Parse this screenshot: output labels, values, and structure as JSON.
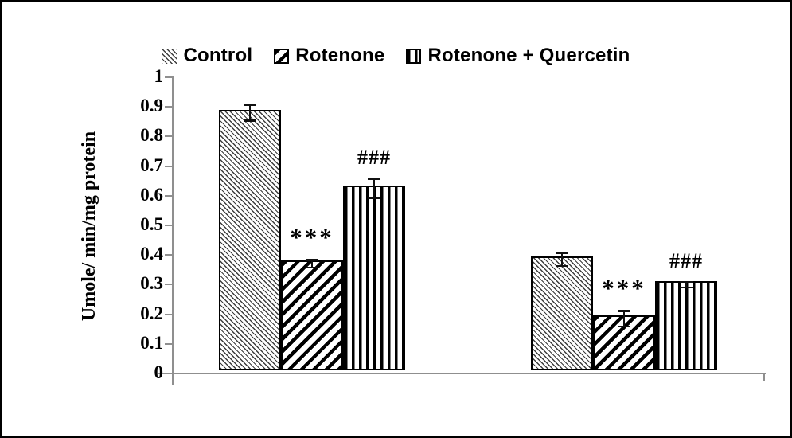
{
  "figure": {
    "background": "#ffffff",
    "frame_border_color": "#000000",
    "axis_color": "#8f8f8f",
    "bar_border_color": "#000000",
    "hatch_fine_color": "#3d3d3d"
  },
  "chart_data": {
    "type": "bar",
    "title": "",
    "xlabel": "",
    "ylabel": "Umole/ min/mg protein",
    "ylim": [
      0,
      1
    ],
    "yticks": [
      0,
      0.1,
      0.2,
      0.3,
      0.4,
      0.5,
      0.6,
      0.7,
      0.8,
      0.9,
      1
    ],
    "ytick_labels": [
      "0",
      "0.1",
      "0.2",
      "0.3",
      "0.4",
      "0.5",
      "0.6",
      "0.7",
      "0.8",
      "0.9",
      "1"
    ],
    "grid": false,
    "legend_position": "top",
    "legend": [
      {
        "label": "Control",
        "pattern": "fine-diagonal-down-hatch",
        "bordered_swatch": false
      },
      {
        "label": "Rotenone",
        "pattern": "wide-diagonal-up-hatch",
        "bordered_swatch": true
      },
      {
        "label": "Rotenone + Quercetin",
        "pattern": "vertical-stripe-hatch",
        "bordered_swatch": true
      }
    ],
    "series_order": [
      "Control",
      "Rotenone",
      "Rotenone + Quercetin"
    ],
    "groups": [
      {
        "bars": [
          {
            "series": "Control",
            "value": 0.88,
            "error": 0.03,
            "annotation": ""
          },
          {
            "series": "Rotenone",
            "value": 0.37,
            "error": 0.016,
            "annotation": "***"
          },
          {
            "series": "Rotenone + Quercetin",
            "value": 0.625,
            "error": 0.035,
            "annotation": "###"
          }
        ]
      },
      {
        "bars": [
          {
            "series": "Control",
            "value": 0.385,
            "error": 0.025,
            "annotation": ""
          },
          {
            "series": "Rotenone",
            "value": 0.185,
            "error": 0.03,
            "annotation": "***"
          },
          {
            "series": "Rotenone + Quercetin",
            "value": 0.3,
            "error": 0.013,
            "annotation": "###"
          }
        ]
      }
    ]
  }
}
